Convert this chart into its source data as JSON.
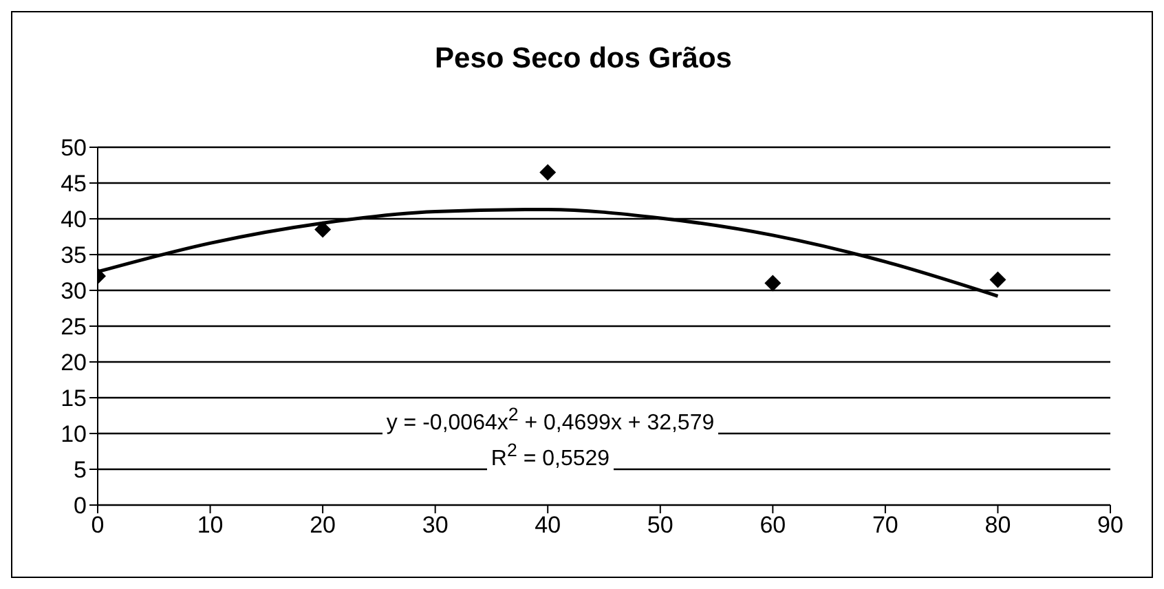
{
  "chart_data": {
    "type": "scatter",
    "title": "Peso Seco dos Grãos",
    "x": [
      0,
      20,
      40,
      60,
      80
    ],
    "series": [
      {
        "color": "#000000",
        "values": [
          32,
          38.5,
          46.5,
          31,
          31.5
        ],
        "marker": "diamond"
      },
      {
        "type": "line",
        "color": "#000000",
        "x": [
          0,
          10,
          20,
          30,
          40,
          50,
          60,
          70,
          80
        ],
        "values": [
          32.6,
          36.6,
          39.4,
          41,
          41.3,
          40.1,
          37.7,
          34,
          29.2
        ],
        "marker": "none"
      }
    ],
    "xlim": [
      0,
      90
    ],
    "xticks": [
      0,
      10,
      20,
      30,
      40,
      50,
      60,
      70,
      80,
      90
    ],
    "ylim": [
      0,
      50
    ],
    "yticks": [
      0,
      5,
      10,
      15,
      20,
      25,
      30,
      35,
      40,
      45,
      50
    ],
    "grid": "y",
    "annotations": [
      "y = -0,0064x$^{2}$ + 0,4699x + 32,579",
      "R$^{2}$ = 0,5529"
    ]
  }
}
